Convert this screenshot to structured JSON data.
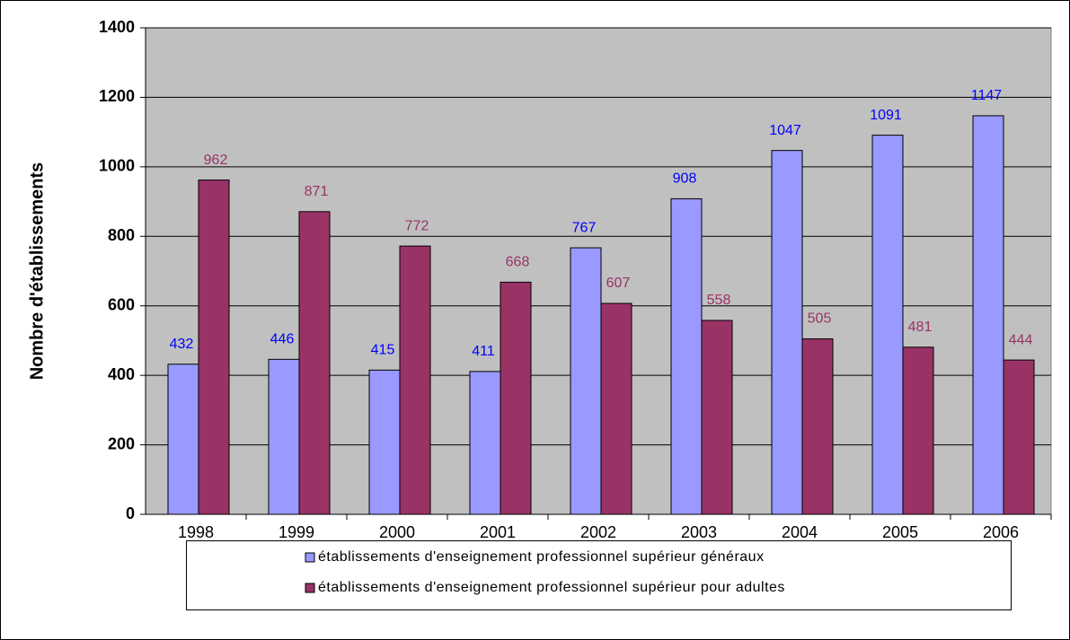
{
  "chart_data": {
    "type": "bar",
    "y_label": "Nombre d'établissements",
    "categories": [
      "1998",
      "1999",
      "2000",
      "2001",
      "2002",
      "2003",
      "2004",
      "2005",
      "2006"
    ],
    "series": [
      {
        "name": "établissements d'enseignement professionnel supérieur généraux",
        "color": "#9999ff",
        "label_color": "#0000ff",
        "values": [
          432,
          446,
          415,
          411,
          767,
          908,
          1047,
          1091,
          1147
        ]
      },
      {
        "name": "établissements d'enseignement professionnel supérieur pour adultes",
        "color": "#993366",
        "label_color": "#993366",
        "values": [
          962,
          871,
          772,
          668,
          607,
          558,
          505,
          481,
          444
        ]
      }
    ],
    "ylim": [
      0,
      1400
    ],
    "yticks": [
      0,
      200,
      400,
      600,
      800,
      1000,
      1200,
      1400
    ],
    "grid": true,
    "legend": "bottom",
    "plot_background": "#c0c0c0"
  }
}
